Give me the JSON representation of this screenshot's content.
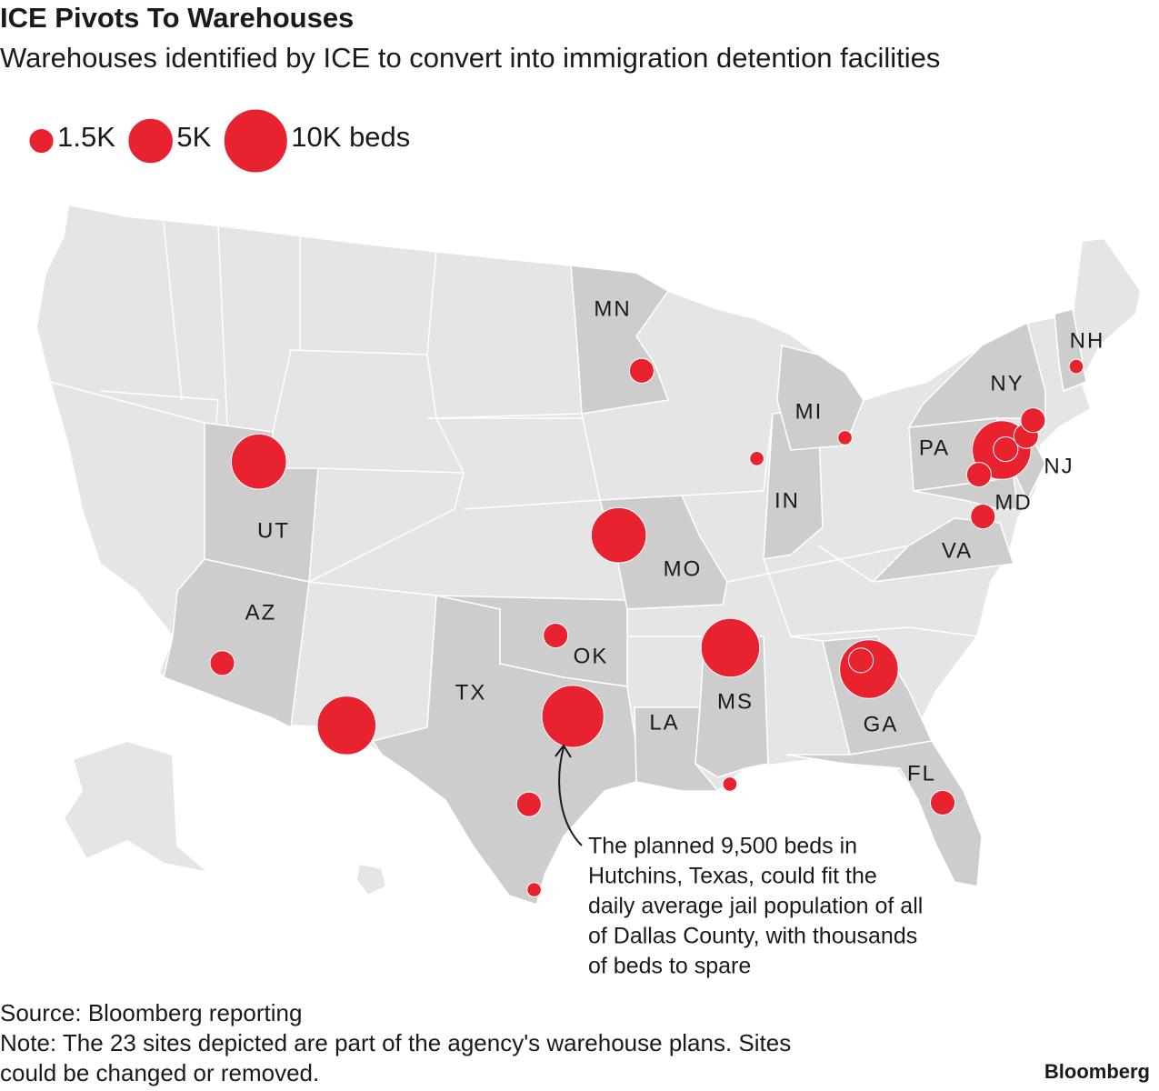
{
  "header": {
    "title": "ICE Pivots To Warehouses",
    "subtitle": "Warehouses identified by ICE to convert into immigration detention facilities"
  },
  "legend": {
    "sizes": [
      {
        "value": 1500,
        "label": "1.5K"
      },
      {
        "value": 5000,
        "label": "5K"
      },
      {
        "value": 10000,
        "label": "10K beds"
      }
    ]
  },
  "map": {
    "state_labels": [
      "MN",
      "NH",
      "NY",
      "MI",
      "PA",
      "NJ",
      "UT",
      "IN",
      "MD",
      "MO",
      "VA",
      "AZ",
      "OK",
      "TX",
      "LA",
      "MS",
      "GA",
      "FL"
    ],
    "sites": [
      {
        "lon": -112.0,
        "lat": 40.75,
        "beds": 7500
      },
      {
        "lon": -112.1,
        "lat": 33.4,
        "beds": 1500
      },
      {
        "lon": -106.4,
        "lat": 31.8,
        "beds": 8500
      },
      {
        "lon": -96.7,
        "lat": 32.6,
        "beds": 9500
      },
      {
        "lon": -98.5,
        "lat": 29.4,
        "beds": 1500
      },
      {
        "lon": -98.2,
        "lat": 26.3,
        "beds": 500
      },
      {
        "lon": -97.5,
        "lat": 35.5,
        "beds": 1500
      },
      {
        "lon": -94.6,
        "lat": 39.1,
        "beds": 7500
      },
      {
        "lon": -93.3,
        "lat": 45.0,
        "beds": 1500
      },
      {
        "lon": -87.8,
        "lat": 41.6,
        "beds": 500
      },
      {
        "lon": -83.4,
        "lat": 42.0,
        "beds": 500
      },
      {
        "lon": -89.7,
        "lat": 34.9,
        "beds": 8500
      },
      {
        "lon": -90.1,
        "lat": 30.0,
        "beds": 500
      },
      {
        "lon": -83.7,
        "lat": 33.65,
        "beds": 8500
      },
      {
        "lon": -84.0,
        "lat": 34.0,
        "beds": 1500
      },
      {
        "lon": -81.4,
        "lat": 28.5,
        "beds": 1500
      },
      {
        "lon": -77.5,
        "lat": 38.4,
        "beds": 1500
      },
      {
        "lon": -76.0,
        "lat": 40.6,
        "beds": 8500
      },
      {
        "lon": -75.8,
        "lat": 40.6,
        "beds": 1500
      },
      {
        "lon": -77.3,
        "lat": 39.9,
        "beds": 1500
      },
      {
        "lon": -74.7,
        "lat": 40.9,
        "beds": 1500
      },
      {
        "lon": -74.2,
        "lat": 41.4,
        "beds": 1500
      },
      {
        "lon": -71.5,
        "lat": 42.9,
        "beds": 500
      }
    ]
  },
  "annotation": {
    "lines": [
      "The planned 9,500 beds in",
      "Hutchins, Texas, could fit the",
      "daily average jail population of all",
      "of Dallas County, with thousands",
      "of beds to spare"
    ]
  },
  "footer": {
    "source": "Source: Bloomberg reporting",
    "note_lines": [
      "Note: The 23 sites depicted are part of the agency's warehouse plans. Sites",
      "could be changed or removed."
    ],
    "brand": "Bloomberg"
  }
}
